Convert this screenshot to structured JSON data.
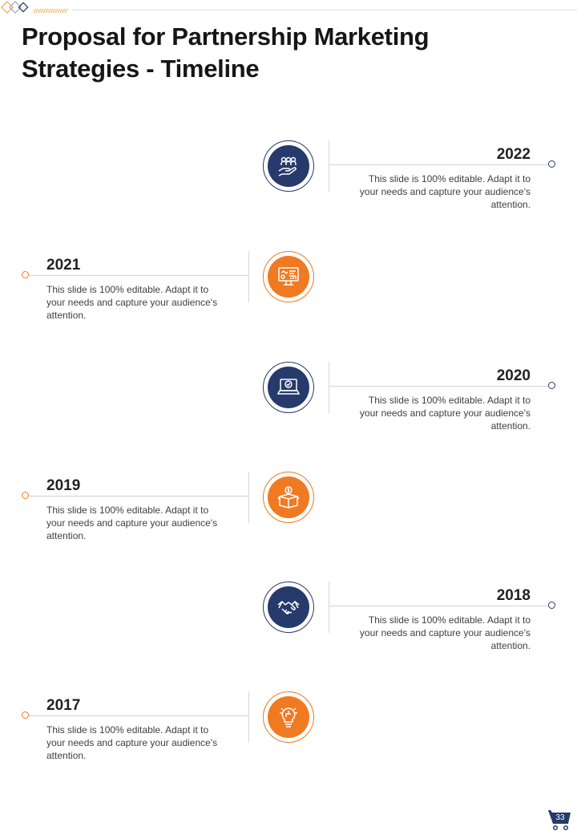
{
  "page": {
    "title": "Proposal for Partnership Marketing Strategies - Timeline",
    "page_number": "33"
  },
  "colors": {
    "navy": "#263a6c",
    "orange": "#f07a22"
  },
  "timeline": [
    {
      "year": "2022",
      "side": "right",
      "color": "navy",
      "icon": "hand-holding-people-icon",
      "text": "This slide is 100% editable. Adapt it to your needs and capture your audience's attention."
    },
    {
      "year": "2021",
      "side": "left",
      "color": "orange",
      "icon": "analytics-monitor-icon",
      "text": "This slide is 100% editable. Adapt it to your needs and capture your audience's attention."
    },
    {
      "year": "2020",
      "side": "right",
      "color": "navy",
      "icon": "laptop-shield-icon",
      "text": "This slide is 100% editable. Adapt it to your needs and capture your audience's attention."
    },
    {
      "year": "2019",
      "side": "left",
      "color": "orange",
      "icon": "money-box-icon",
      "text": "This slide is 100% editable. Adapt it to your needs and capture your audience's attention."
    },
    {
      "year": "2018",
      "side": "right",
      "color": "navy",
      "icon": "handshake-icon",
      "text": "This slide is 100% editable. Adapt it to your needs and capture your audience's attention."
    },
    {
      "year": "2017",
      "side": "left",
      "color": "orange",
      "icon": "lightbulb-puzzle-icon",
      "text": "This slide is 100% editable. Adapt it to your needs and capture your audience's attention."
    }
  ]
}
